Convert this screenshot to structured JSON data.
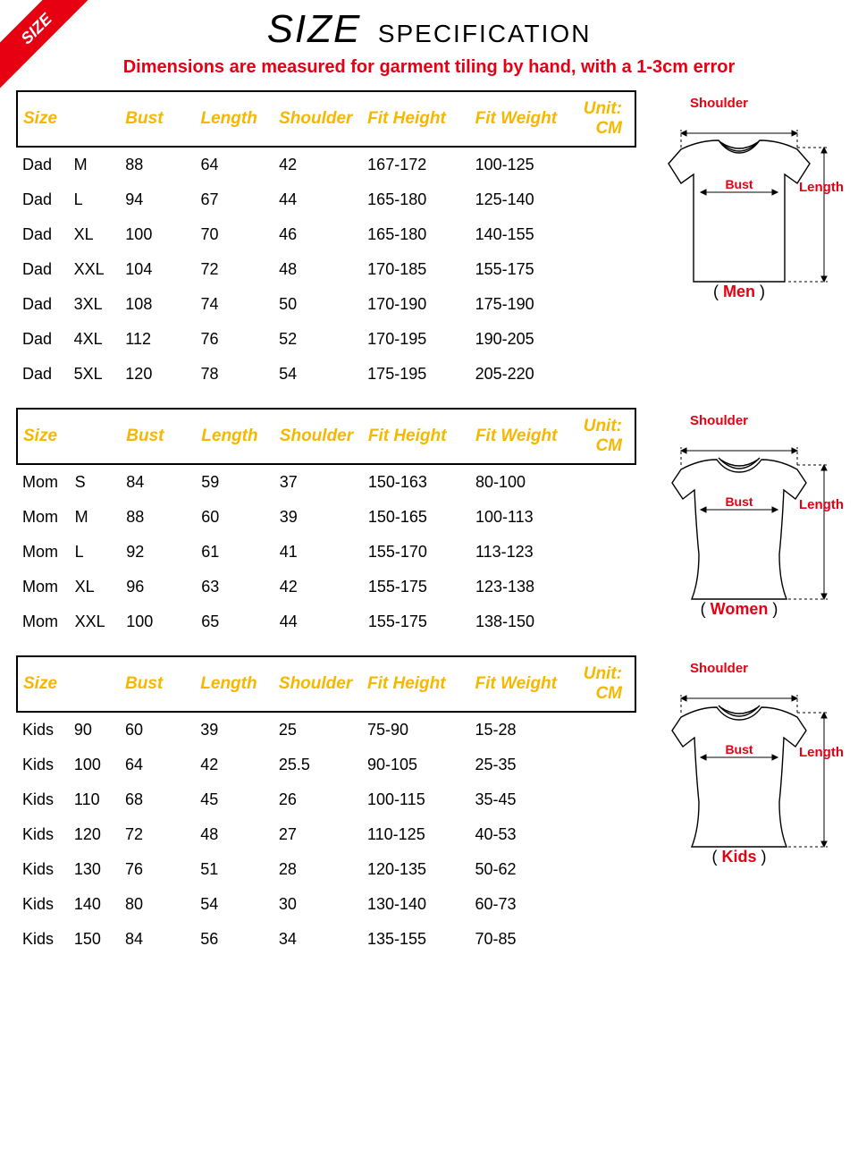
{
  "ribbon": "SIZE",
  "title_big": "SIZE",
  "title_small": "SPECIFICATION",
  "subtitle": "Dimensions are measured for garment tiling by hand, with a 1-3cm error",
  "headers": {
    "size": "Size",
    "bust": "Bust",
    "length": "Length",
    "shoulder": "Shoulder",
    "fit_height": "Fit Height",
    "fit_weight": "Fit Weight",
    "unit": "Unit: CM"
  },
  "diagram_labels": {
    "shoulder": "Shoulder",
    "bust": "Bust",
    "length": "Length"
  },
  "colors": {
    "accent_red": "#e60012",
    "header_gold": "#f5b800",
    "text_black": "#000000"
  },
  "sections": [
    {
      "category": "Men",
      "prefix": "Dad",
      "shirt_style": "men",
      "rows": [
        {
          "size": "M",
          "bust": "88",
          "length": "64",
          "shoulder": "42",
          "fit_height": "167-172",
          "fit_weight": "100-125"
        },
        {
          "size": "L",
          "bust": "94",
          "length": "67",
          "shoulder": "44",
          "fit_height": "165-180",
          "fit_weight": "125-140"
        },
        {
          "size": "XL",
          "bust": "100",
          "length": "70",
          "shoulder": "46",
          "fit_height": "165-180",
          "fit_weight": "140-155"
        },
        {
          "size": "XXL",
          "bust": "104",
          "length": "72",
          "shoulder": "48",
          "fit_height": "170-185",
          "fit_weight": "155-175"
        },
        {
          "size": "3XL",
          "bust": "108",
          "length": "74",
          "shoulder": "50",
          "fit_height": "170-190",
          "fit_weight": "175-190"
        },
        {
          "size": "4XL",
          "bust": "112",
          "length": "76",
          "shoulder": "52",
          "fit_height": "170-195",
          "fit_weight": "190-205"
        },
        {
          "size": "5XL",
          "bust": "120",
          "length": "78",
          "shoulder": "54",
          "fit_height": "175-195",
          "fit_weight": "205-220"
        }
      ]
    },
    {
      "category": "Women",
      "prefix": "Mom",
      "shirt_style": "women",
      "rows": [
        {
          "size": "S",
          "bust": "84",
          "length": "59",
          "shoulder": "37",
          "fit_height": "150-163",
          "fit_weight": "80-100"
        },
        {
          "size": "M",
          "bust": "88",
          "length": "60",
          "shoulder": "39",
          "fit_height": "150-165",
          "fit_weight": "100-113"
        },
        {
          "size": "L",
          "bust": "92",
          "length": "61",
          "shoulder": "41",
          "fit_height": "155-170",
          "fit_weight": "113-123"
        },
        {
          "size": "XL",
          "bust": "96",
          "length": "63",
          "shoulder": "42",
          "fit_height": "155-175",
          "fit_weight": "123-138"
        },
        {
          "size": "XXL",
          "bust": "100",
          "length": "65",
          "shoulder": "44",
          "fit_height": "155-175",
          "fit_weight": "138-150"
        }
      ]
    },
    {
      "category": "Kids",
      "prefix": "Kids",
      "shirt_style": "kids",
      "rows": [
        {
          "size": "90",
          "bust": "60",
          "length": "39",
          "shoulder": "25",
          "fit_height": "75-90",
          "fit_weight": "15-28"
        },
        {
          "size": "100",
          "bust": "64",
          "length": "42",
          "shoulder": "25.5",
          "fit_height": "90-105",
          "fit_weight": "25-35"
        },
        {
          "size": "110",
          "bust": "68",
          "length": "45",
          "shoulder": "26",
          "fit_height": "100-115",
          "fit_weight": "35-45"
        },
        {
          "size": "120",
          "bust": "72",
          "length": "48",
          "shoulder": "27",
          "fit_height": "110-125",
          "fit_weight": "40-53"
        },
        {
          "size": "130",
          "bust": "76",
          "length": "51",
          "shoulder": "28",
          "fit_height": "120-135",
          "fit_weight": "50-62"
        },
        {
          "size": "140",
          "bust": "80",
          "length": "54",
          "shoulder": "30",
          "fit_height": "130-140",
          "fit_weight": "60-73"
        },
        {
          "size": "150",
          "bust": "84",
          "length": "56",
          "shoulder": "34",
          "fit_height": "135-155",
          "fit_weight": "70-85"
        }
      ]
    }
  ]
}
